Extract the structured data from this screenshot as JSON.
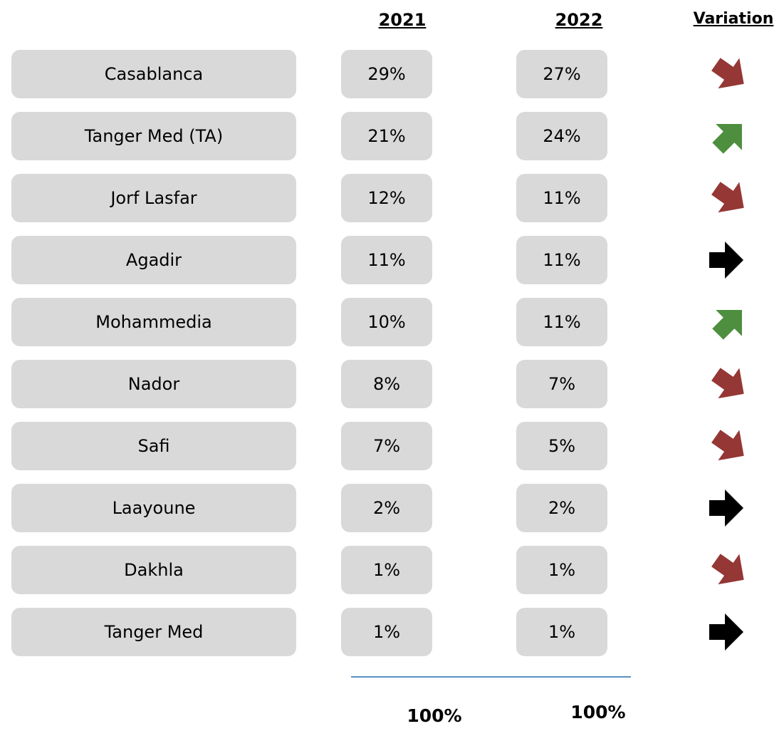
{
  "header": {
    "col1": "2021",
    "col2": "2022",
    "col3": "Variation"
  },
  "rows": [
    {
      "name": "Casablanca",
      "v2021": "29%",
      "v2022": "27%",
      "variation": "down"
    },
    {
      "name": "Tanger Med (TA)",
      "v2021": "21%",
      "v2022": "24%",
      "variation": "up"
    },
    {
      "name": "Jorf Lasfar",
      "v2021": "12%",
      "v2022": "11%",
      "variation": "down"
    },
    {
      "name": "Agadir",
      "v2021": "11%",
      "v2022": "11%",
      "variation": "flat"
    },
    {
      "name": "Mohammedia",
      "v2021": "10%",
      "v2022": "11%",
      "variation": "up"
    },
    {
      "name": "Nador",
      "v2021": "8%",
      "v2022": "7%",
      "variation": "down"
    },
    {
      "name": "Safi",
      "v2021": "7%",
      "v2022": "5%",
      "variation": "down"
    },
    {
      "name": "Laayoune",
      "v2021": "2%",
      "v2022": "2%",
      "variation": "flat"
    },
    {
      "name": "Dakhla",
      "v2021": "1%",
      "v2022": "1%",
      "variation": "down"
    },
    {
      "name": "Tanger Med",
      "v2021": "1%",
      "v2022": "1%",
      "variation": "flat"
    }
  ],
  "totals": {
    "v2021": "100%",
    "v2022": "100%"
  }
}
